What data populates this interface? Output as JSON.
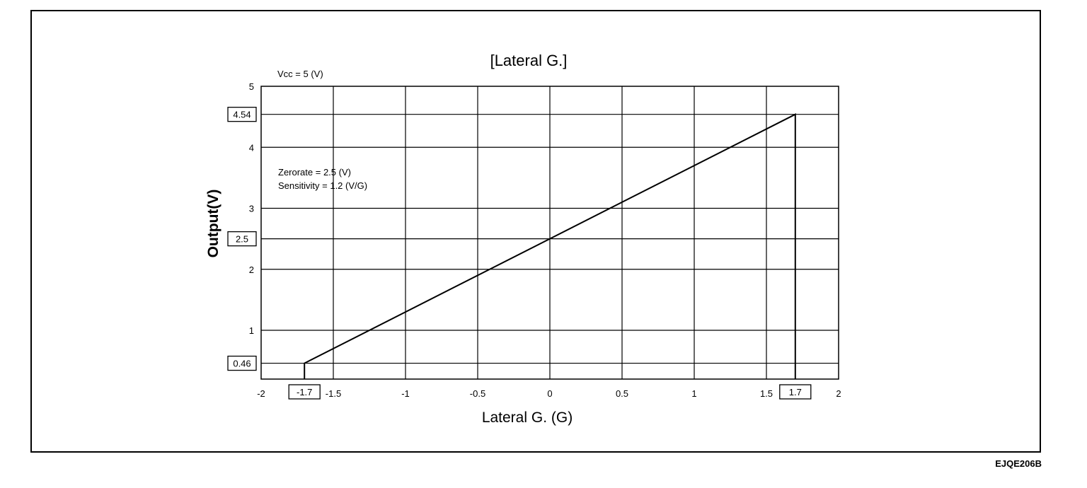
{
  "document_code": "EJQE206B",
  "chart_data": {
    "type": "line",
    "title": "[Lateral G.]",
    "xlabel": "Lateral G. (G)",
    "ylabel": "Output(V)",
    "xlim": [
      -2,
      2
    ],
    "ylim": [
      0.2,
      5
    ],
    "grid": true,
    "x_ticks": [
      -2,
      -1.5,
      -1,
      -0.5,
      0,
      0.5,
      1,
      1.5,
      2
    ],
    "x_tick_labels": [
      "-2",
      "-1.5",
      "-1",
      "-0.5",
      "0",
      "0.5",
      "1",
      "1.5",
      "2"
    ],
    "y_ticks": [
      1,
      2,
      3,
      4,
      5
    ],
    "y_tick_labels": [
      "1",
      "2",
      "3",
      "4",
      "5"
    ],
    "extra_gridlines_y": [
      0.46,
      2.5,
      4.54
    ],
    "series": [
      {
        "x": [
          -1.7,
          -1.7,
          1.7,
          1.7
        ],
        "y": [
          0.2,
          0.46,
          4.54,
          0.2
        ]
      }
    ],
    "boxed_x_labels": [
      {
        "value": -1.7,
        "text": "-1.7"
      },
      {
        "value": 1.7,
        "text": "1.7"
      }
    ],
    "boxed_y_labels": [
      {
        "value": 4.54,
        "text": "4.54"
      },
      {
        "value": 2.5,
        "text": "2.5"
      },
      {
        "value": 0.46,
        "text": "0.46"
      }
    ],
    "annotations": [
      "Vcc = 5 (V)",
      "Zerorate = 2.5 (V)",
      "Sensitivity = 1.2 (V/G)"
    ]
  }
}
